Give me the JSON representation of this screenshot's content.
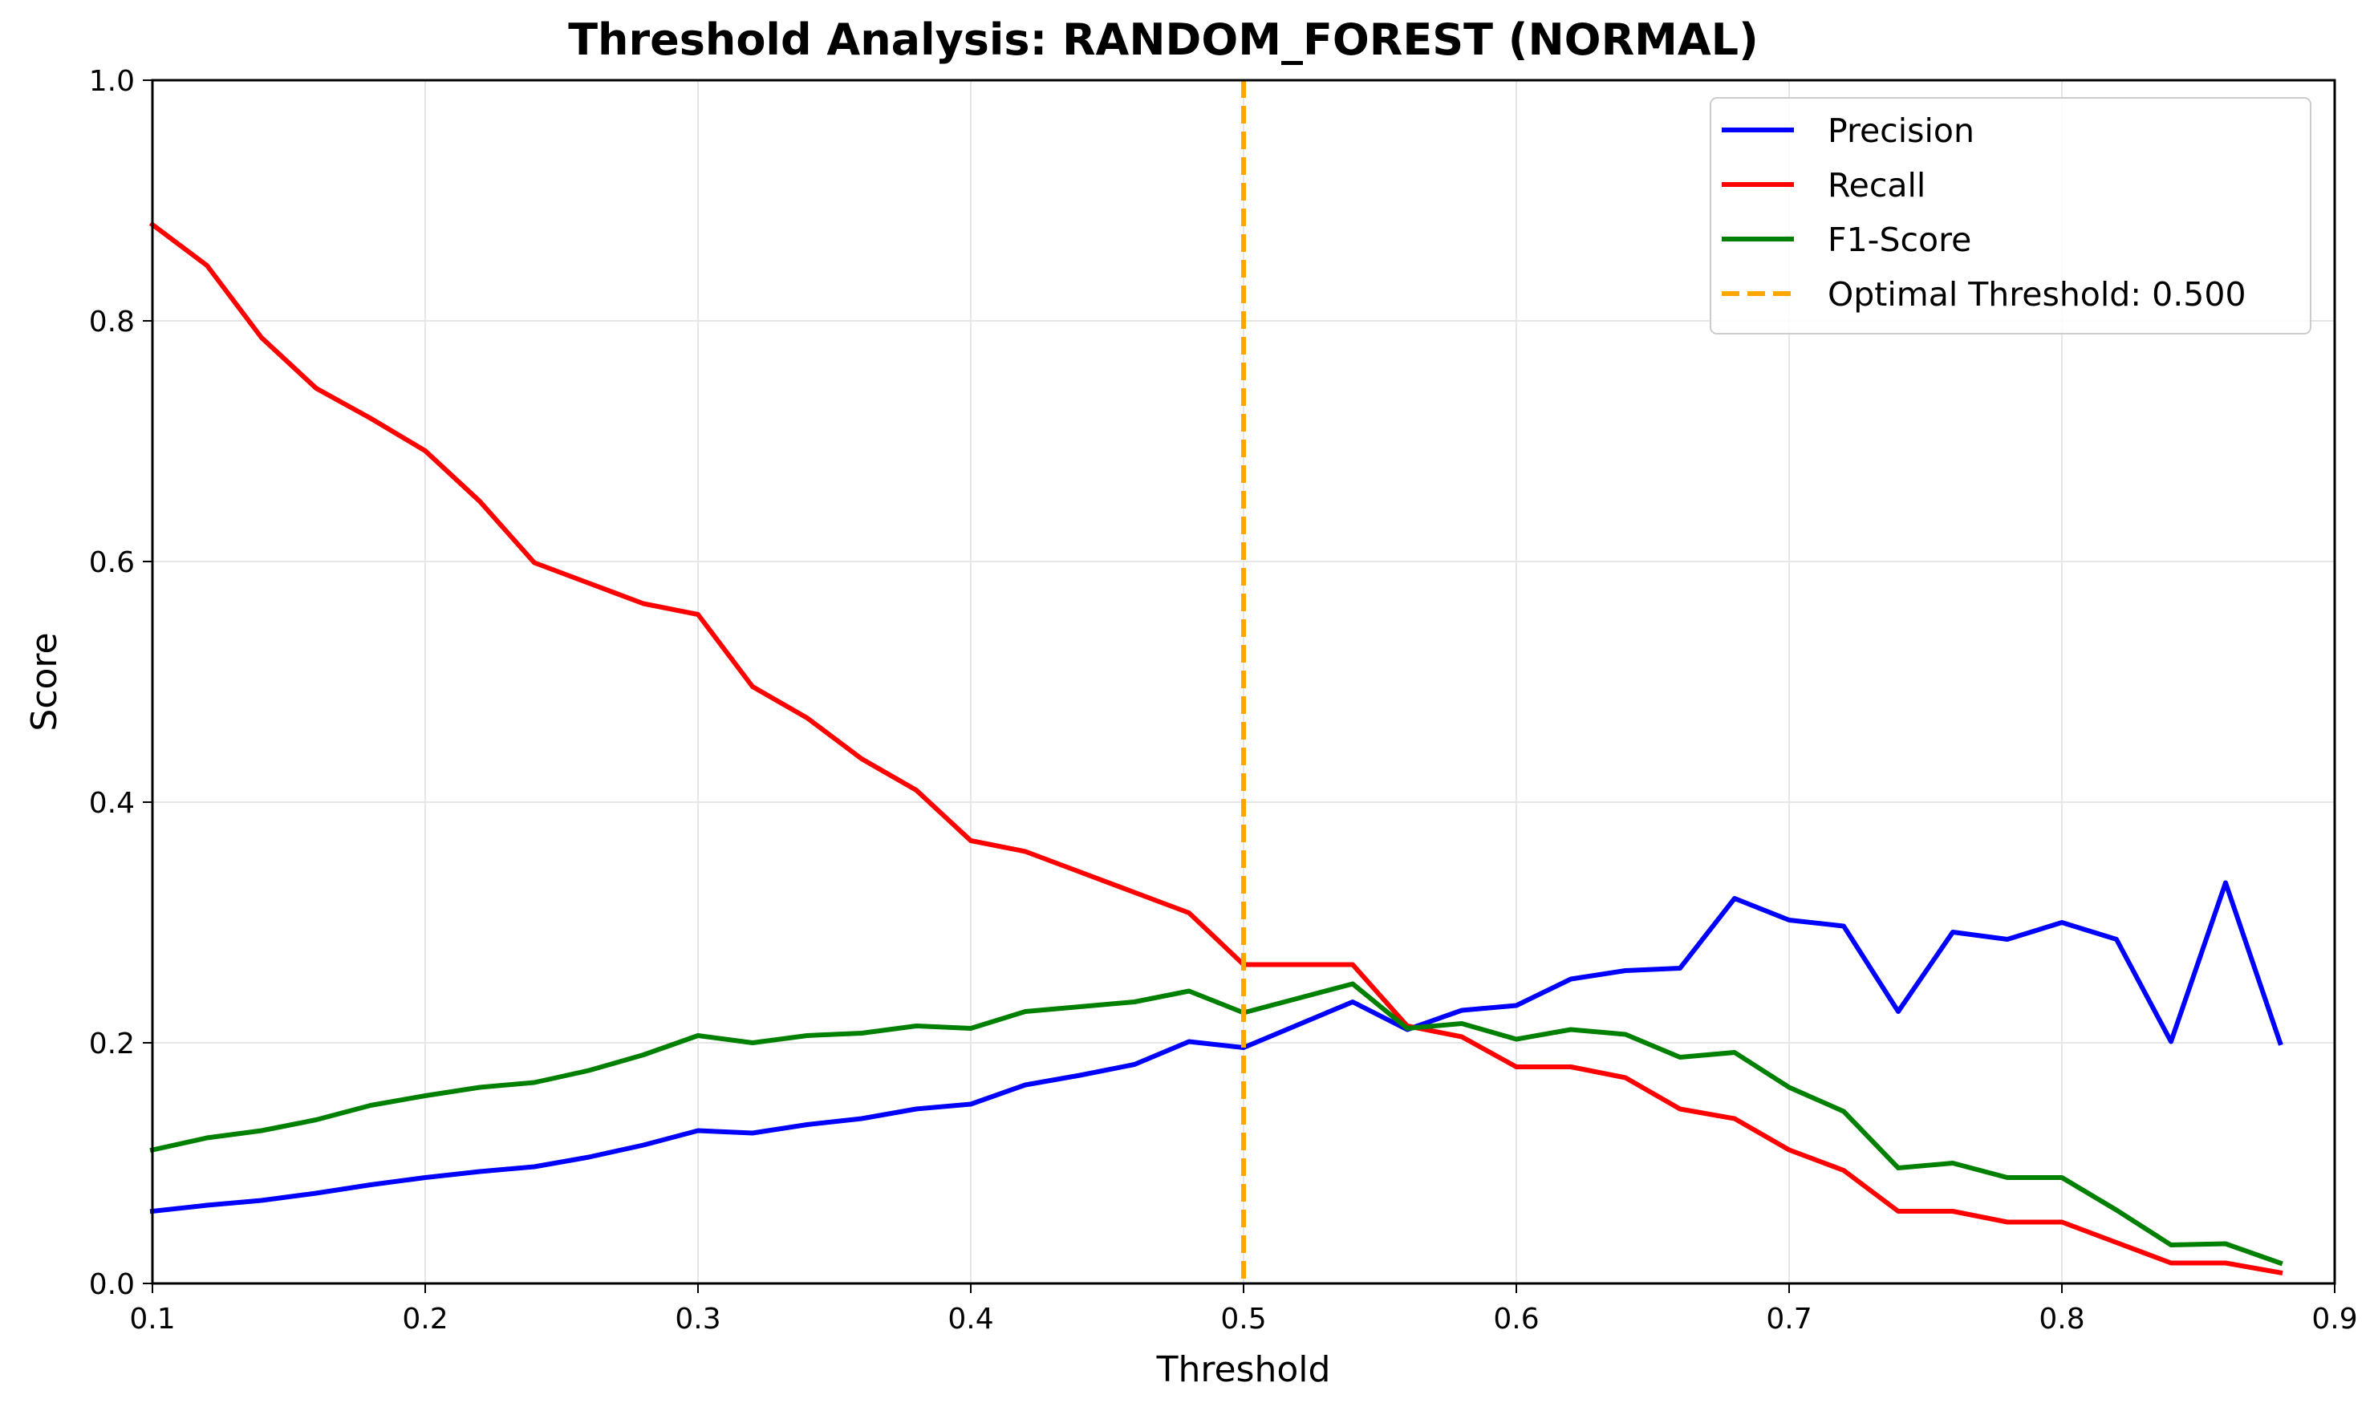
{
  "colors": {
    "precision": "#0000ff",
    "recall": "#ff0000",
    "f1": "#008000",
    "optimal": "#ffa500",
    "grid": "#e6e6e6"
  },
  "chart_data": {
    "type": "line",
    "title": "Threshold Analysis: RANDOM_FOREST (NORMAL)",
    "xlabel": "Threshold",
    "ylabel": "Score",
    "xlim": [
      0.1,
      0.9
    ],
    "ylim": [
      0.0,
      1.0
    ],
    "x_ticks": [
      "0.1",
      "0.2",
      "0.3",
      "0.4",
      "0.5",
      "0.6",
      "0.7",
      "0.8",
      "0.9"
    ],
    "y_ticks": [
      "0.0",
      "0.2",
      "0.4",
      "0.6",
      "0.8",
      "1.0"
    ],
    "grid": true,
    "legend_position": "top-right",
    "x": [
      0.1,
      0.12,
      0.14,
      0.16,
      0.18,
      0.2,
      0.22,
      0.24,
      0.26,
      0.28,
      0.3,
      0.32,
      0.34,
      0.36,
      0.38,
      0.4,
      0.42,
      0.44,
      0.46,
      0.48,
      0.5,
      0.52,
      0.54,
      0.56,
      0.58,
      0.6,
      0.62,
      0.64,
      0.66,
      0.68,
      0.7,
      0.72,
      0.74,
      0.76,
      0.78,
      0.8,
      0.82,
      0.84,
      0.86,
      0.88
    ],
    "series": [
      {
        "name": "Precision",
        "color_key": "precision",
        "values": [
          0.06,
          0.065,
          0.069,
          0.075,
          0.082,
          0.088,
          0.093,
          0.097,
          0.105,
          0.115,
          0.127,
          0.125,
          0.132,
          0.137,
          0.145,
          0.149,
          0.165,
          0.173,
          0.182,
          0.201,
          0.196,
          0.215,
          0.234,
          0.211,
          0.227,
          0.231,
          0.253,
          0.26,
          0.262,
          0.32,
          0.302,
          0.297,
          0.226,
          0.292,
          0.286,
          0.3,
          0.286,
          0.201,
          0.333,
          0.2
        ]
      },
      {
        "name": "Recall",
        "color_key": "recall",
        "values": [
          0.88,
          0.846,
          0.786,
          0.744,
          0.719,
          0.692,
          0.65,
          0.599,
          0.582,
          0.565,
          0.556,
          0.496,
          0.47,
          0.436,
          0.41,
          0.368,
          0.359,
          0.342,
          0.325,
          0.308,
          0.265,
          0.265,
          0.265,
          0.214,
          0.205,
          0.18,
          0.18,
          0.171,
          0.145,
          0.137,
          0.111,
          0.094,
          0.06,
          0.06,
          0.051,
          0.051,
          0.034,
          0.017,
          0.017,
          0.009
        ]
      },
      {
        "name": "F1-Score",
        "color_key": "f1",
        "values": [
          0.111,
          0.121,
          0.127,
          0.136,
          0.148,
          0.156,
          0.163,
          0.167,
          0.177,
          0.19,
          0.206,
          0.2,
          0.206,
          0.208,
          0.214,
          0.212,
          0.226,
          0.23,
          0.234,
          0.243,
          0.225,
          0.237,
          0.249,
          0.212,
          0.216,
          0.203,
          0.211,
          0.207,
          0.188,
          0.192,
          0.163,
          0.143,
          0.096,
          0.1,
          0.088,
          0.088,
          0.061,
          0.032,
          0.033,
          0.017
        ]
      }
    ],
    "vline": {
      "name": "Optimal Threshold: 0.500",
      "x": 0.5,
      "color_key": "optimal",
      "style": "dashed"
    }
  }
}
